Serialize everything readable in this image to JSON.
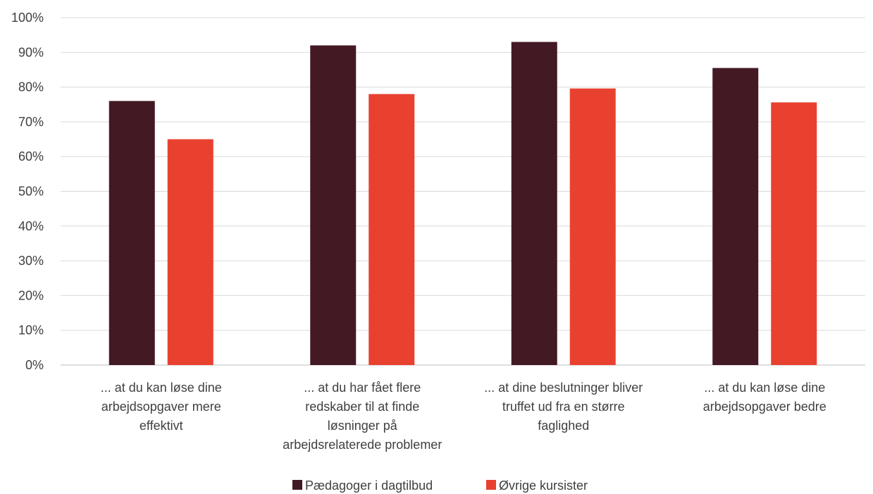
{
  "chart_data": {
    "type": "bar",
    "title": "",
    "xlabel": "",
    "ylabel": "",
    "ylim": [
      0,
      100
    ],
    "yticks": [
      "0%",
      "10%",
      "20%",
      "30%",
      "40%",
      "50%",
      "60%",
      "70%",
      "80%",
      "90%",
      "100%"
    ],
    "grid": true,
    "legend_position": "bottom",
    "categories": [
      [
        "... at du kan løse dine",
        "arbejdsopgaver mere",
        "effektivt"
      ],
      [
        "... at du har fået flere",
        "redskaber til at finde",
        "løsninger på",
        "arbejdsrelaterede problemer"
      ],
      [
        "... at dine beslutninger bliver",
        "truffet ud fra en større",
        "faglighed"
      ],
      [
        "... at du kan løse dine",
        "arbejdsopgaver bedre"
      ]
    ],
    "series": [
      {
        "name": "Pædagoger i dagtilbud",
        "color": "#431923",
        "values": [
          76,
          92,
          93,
          85.5
        ]
      },
      {
        "name": "Øvrige kursister",
        "color": "#E84130",
        "values": [
          65,
          78,
          79.6,
          75.6
        ]
      }
    ]
  }
}
